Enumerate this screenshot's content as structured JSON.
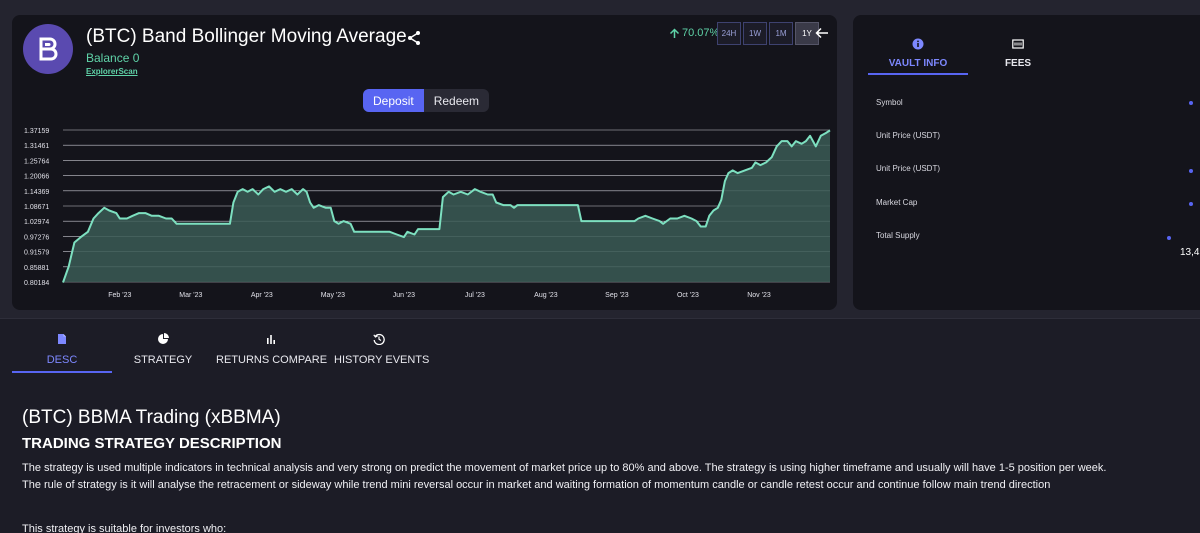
{
  "product": {
    "title": "(BTC) Band Bollinger Moving Average",
    "balance": "Balance 0",
    "explorer_link": "ExplorerScan",
    "performance": "70.07%",
    "timeframes": [
      "24H",
      "1W",
      "1M",
      "1Y"
    ],
    "active_timeframe": "1Y",
    "deposit_label": "Deposit",
    "redeem_label": "Redeem"
  },
  "colors": {
    "accent": "#5865f2",
    "positive": "#5fd3a8",
    "line": "#7de0c0",
    "area": "#3a5a55",
    "card": "#14141b"
  },
  "chart_data": {
    "type": "area",
    "ylim": [
      0.80184,
      1.37159
    ],
    "y_ticks": [
      "1.37159",
      "1.31461",
      "1.25764",
      "1.20066",
      "1.14369",
      "1.08671",
      "1.02974",
      "0.97276",
      "0.91579",
      "0.85881",
      "0.80184"
    ],
    "x_ticks": [
      "Feb '23",
      "Mar '23",
      "Apr '23",
      "May '23",
      "Jun '23",
      "Jul '23",
      "Aug '23",
      "Sep '23",
      "Oct '23",
      "Nov '23"
    ],
    "x_range_months": [
      0.2,
      11.0
    ],
    "series": [
      {
        "points": [
          [
            0.2,
            0.8
          ],
          [
            0.28,
            0.86
          ],
          [
            0.36,
            0.95
          ],
          [
            0.45,
            0.97
          ],
          [
            0.55,
            0.99
          ],
          [
            0.63,
            1.04
          ],
          [
            0.7,
            1.06
          ],
          [
            0.78,
            1.08
          ],
          [
            0.85,
            1.07
          ],
          [
            0.95,
            1.06
          ],
          [
            1.0,
            1.04
          ],
          [
            1.1,
            1.04
          ],
          [
            1.18,
            1.05
          ],
          [
            1.27,
            1.06
          ],
          [
            1.36,
            1.06
          ],
          [
            1.45,
            1.05
          ],
          [
            1.55,
            1.05
          ],
          [
            1.65,
            1.04
          ],
          [
            1.73,
            1.04
          ],
          [
            1.8,
            1.02
          ],
          [
            2.0,
            1.02
          ],
          [
            2.3,
            1.02
          ],
          [
            2.55,
            1.02
          ],
          [
            2.6,
            1.1
          ],
          [
            2.66,
            1.14
          ],
          [
            2.73,
            1.15
          ],
          [
            2.8,
            1.14
          ],
          [
            2.87,
            1.15
          ],
          [
            2.95,
            1.13
          ],
          [
            3.02,
            1.15
          ],
          [
            3.1,
            1.16
          ],
          [
            3.18,
            1.14
          ],
          [
            3.26,
            1.15
          ],
          [
            3.34,
            1.14
          ],
          [
            3.42,
            1.15
          ],
          [
            3.5,
            1.13
          ],
          [
            3.58,
            1.15
          ],
          [
            3.63,
            1.14
          ],
          [
            3.68,
            1.1
          ],
          [
            3.73,
            1.08
          ],
          [
            3.8,
            1.09
          ],
          [
            3.9,
            1.08
          ],
          [
            3.97,
            1.08
          ],
          [
            4.02,
            1.03
          ],
          [
            4.08,
            1.02
          ],
          [
            4.15,
            1.03
          ],
          [
            4.25,
            1.02
          ],
          [
            4.3,
            0.99
          ],
          [
            4.4,
            0.99
          ],
          [
            4.6,
            0.99
          ],
          [
            4.8,
            0.99
          ],
          [
            4.9,
            0.98
          ],
          [
            5.0,
            0.97
          ],
          [
            5.05,
            0.99
          ],
          [
            5.15,
            0.98
          ],
          [
            5.2,
            1.0
          ],
          [
            5.35,
            1.0
          ],
          [
            5.5,
            1.0
          ],
          [
            5.55,
            1.12
          ],
          [
            5.63,
            1.14
          ],
          [
            5.7,
            1.13
          ],
          [
            5.8,
            1.14
          ],
          [
            5.9,
            1.13
          ],
          [
            6.0,
            1.15
          ],
          [
            6.08,
            1.14
          ],
          [
            6.18,
            1.13
          ],
          [
            6.25,
            1.13
          ],
          [
            6.3,
            1.1
          ],
          [
            6.4,
            1.09
          ],
          [
            6.5,
            1.09
          ],
          [
            6.55,
            1.08
          ],
          [
            6.6,
            1.09
          ],
          [
            6.8,
            1.09
          ],
          [
            7.0,
            1.09
          ],
          [
            7.2,
            1.09
          ],
          [
            7.35,
            1.09
          ],
          [
            7.45,
            1.09
          ],
          [
            7.5,
            1.03
          ],
          [
            7.7,
            1.03
          ],
          [
            7.9,
            1.03
          ],
          [
            8.1,
            1.03
          ],
          [
            8.25,
            1.03
          ],
          [
            8.3,
            1.04
          ],
          [
            8.4,
            1.05
          ],
          [
            8.5,
            1.04
          ],
          [
            8.6,
            1.03
          ],
          [
            8.65,
            1.02
          ],
          [
            8.75,
            1.04
          ],
          [
            8.85,
            1.04
          ],
          [
            8.95,
            1.05
          ],
          [
            9.05,
            1.04
          ],
          [
            9.12,
            1.03
          ],
          [
            9.18,
            1.01
          ],
          [
            9.25,
            1.01
          ],
          [
            9.3,
            1.05
          ],
          [
            9.36,
            1.07
          ],
          [
            9.42,
            1.08
          ],
          [
            9.47,
            1.11
          ],
          [
            9.52,
            1.18
          ],
          [
            9.57,
            1.21
          ],
          [
            9.63,
            1.22
          ],
          [
            9.7,
            1.21
          ],
          [
            9.8,
            1.22
          ],
          [
            9.9,
            1.23
          ],
          [
            9.95,
            1.25
          ],
          [
            10.02,
            1.24
          ],
          [
            10.1,
            1.25
          ],
          [
            10.18,
            1.27
          ],
          [
            10.25,
            1.31
          ],
          [
            10.32,
            1.33
          ],
          [
            10.4,
            1.33
          ],
          [
            10.46,
            1.31
          ],
          [
            10.52,
            1.33
          ],
          [
            10.6,
            1.32
          ],
          [
            10.66,
            1.33
          ],
          [
            10.72,
            1.35
          ],
          [
            10.8,
            1.31
          ],
          [
            10.87,
            1.35
          ],
          [
            10.94,
            1.36
          ],
          [
            11.0,
            1.37
          ]
        ]
      }
    ]
  },
  "vault": {
    "tabs": [
      {
        "label": "VAULT INFO",
        "icon": "info-icon",
        "active": true
      },
      {
        "label": "FEES",
        "icon": "fees-icon",
        "active": false
      }
    ],
    "rows": [
      {
        "label": "Symbol"
      },
      {
        "label": "Unit Price (USDT)"
      },
      {
        "label": "Unit Price (USDT)"
      },
      {
        "label": "Market Cap"
      },
      {
        "label": "Total Supply",
        "value": "13,4"
      }
    ]
  },
  "bottom": {
    "tabs": [
      {
        "label": "DESC",
        "icon": "document-icon",
        "active": true
      },
      {
        "label": "STRATEGY",
        "icon": "pie-chart-icon",
        "active": false
      },
      {
        "label": "RETURNS COMPARE",
        "icon": "bar-chart-icon",
        "active": false
      },
      {
        "label": "HISTORY EVENTS",
        "icon": "history-icon",
        "active": false
      }
    ],
    "desc_title": "(BTC) BBMA Trading (xBBMA)",
    "desc_subtitle": "TRADING STRATEGY DESCRIPTION",
    "desc_line1": "The strategy is used multiple indicators in technical analysis and very strong on predict the movement of market price up to 80% and above. The strategy is using higher timeframe and usually will have 1-5 position per week.",
    "desc_line2": "The rule of strategy is it will analyse the retracement or sideway while trend mini reversal occur in market and waiting formation of momentum candle or candle retest occur and continue follow main trend direction",
    "desc_suitable": "This strategy is suitable for investors who:"
  }
}
